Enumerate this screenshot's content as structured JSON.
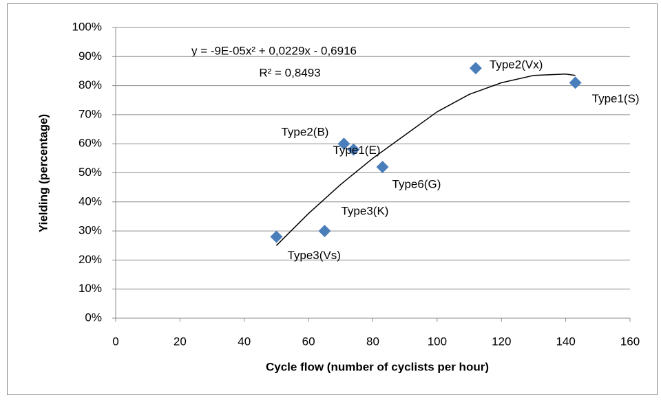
{
  "chart_data": {
    "type": "scatter",
    "x_label": "Cycle flow (number of cyclists per hour)",
    "y_label": "Yielding (percentage)",
    "x": [
      50,
      65,
      71,
      74,
      83,
      112,
      143
    ],
    "values": [
      28,
      30,
      60,
      58,
      52,
      86,
      81
    ],
    "point_labels": [
      "Type3(Vs)",
      "Type3(K)",
      "Type2(B)",
      "Type1(E)",
      "Type6(G)",
      "Type2(Vx)",
      "Type1(S)"
    ],
    "color": "#4a7ebb",
    "xlim": [
      0,
      160
    ],
    "xticks": [
      0,
      20,
      40,
      60,
      80,
      100,
      120,
      140,
      160
    ],
    "ylim": [
      0,
      100
    ],
    "yticks": [
      {
        "value": 0,
        "label": "0%"
      },
      {
        "value": 10,
        "label": "10%"
      },
      {
        "value": 20,
        "label": "20%"
      },
      {
        "value": 30,
        "label": "30%"
      },
      {
        "value": 40,
        "label": "40%"
      },
      {
        "value": 50,
        "label": "50%"
      },
      {
        "value": 60,
        "label": "60%"
      },
      {
        "value": 70,
        "label": "70%"
      },
      {
        "value": 80,
        "label": "80%"
      },
      {
        "value": 90,
        "label": "90%"
      },
      {
        "value": 100,
        "label": "100%"
      }
    ],
    "grid": true,
    "trendline": {
      "equation": "y = -9E-05x² + 0,0229x - 0,6916",
      "r2": "R² = 0,8493",
      "color": "#000000",
      "x": [
        50,
        60,
        70,
        80,
        90,
        100,
        110,
        120,
        130,
        140,
        143
      ],
      "values": [
        25,
        36,
        46,
        55,
        63,
        71,
        77,
        81,
        83.5,
        84,
        83.5
      ]
    }
  }
}
